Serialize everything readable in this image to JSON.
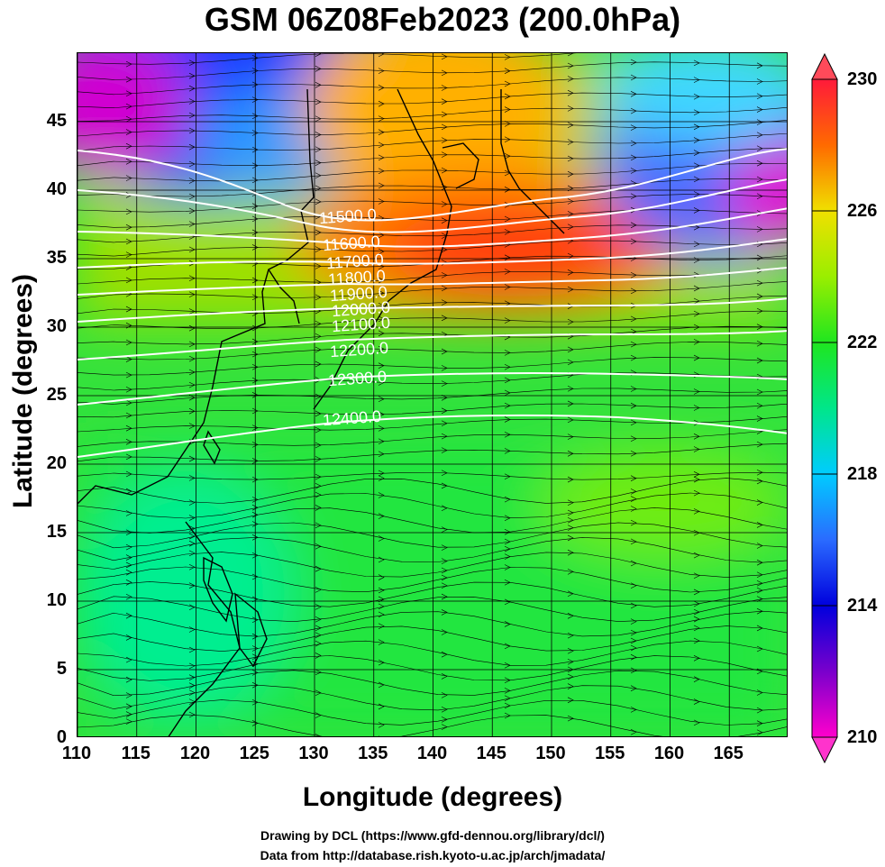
{
  "title": "GSM 06Z08Feb2023 (200.0hPa)",
  "x_axis": {
    "label": "Longitude (degrees)",
    "ticks": [
      "110",
      "115",
      "120",
      "125",
      "130",
      "135",
      "140",
      "145",
      "150",
      "155",
      "160",
      "165"
    ],
    "range": [
      110,
      170
    ]
  },
  "y_axis": {
    "label": "Latitude  (degrees)",
    "ticks": [
      "0",
      "5",
      "10",
      "15",
      "20",
      "25",
      "30",
      "35",
      "40",
      "45"
    ],
    "range": [
      0,
      50
    ]
  },
  "colorbar": {
    "ticks": [
      "230",
      "226",
      "222",
      "218",
      "214",
      "210"
    ],
    "range": [
      210,
      230
    ],
    "colors": [
      "#ff00cc",
      "#7a00cc",
      "#0000dd",
      "#2a6bff",
      "#00ccff",
      "#00e68a",
      "#1fe61f",
      "#9aee00",
      "#f0e000",
      "#ff9a00",
      "#ff3a00",
      "#ff1a3a"
    ]
  },
  "contours": {
    "color": "#ffffff",
    "labels": [
      "11500.0",
      "11600.0",
      "11700.0",
      "11800.0",
      "11900.0",
      "12000.0",
      "12100.0",
      "12200.0",
      "12300.0",
      "12400.0"
    ]
  },
  "credits": {
    "line1": "Drawing by DCL (https://www.gfd-dennou.org/library/dcl/)",
    "line2": "Data from http://database.rish.kyoto-u.ac.jp/arch/jmadata/"
  }
}
